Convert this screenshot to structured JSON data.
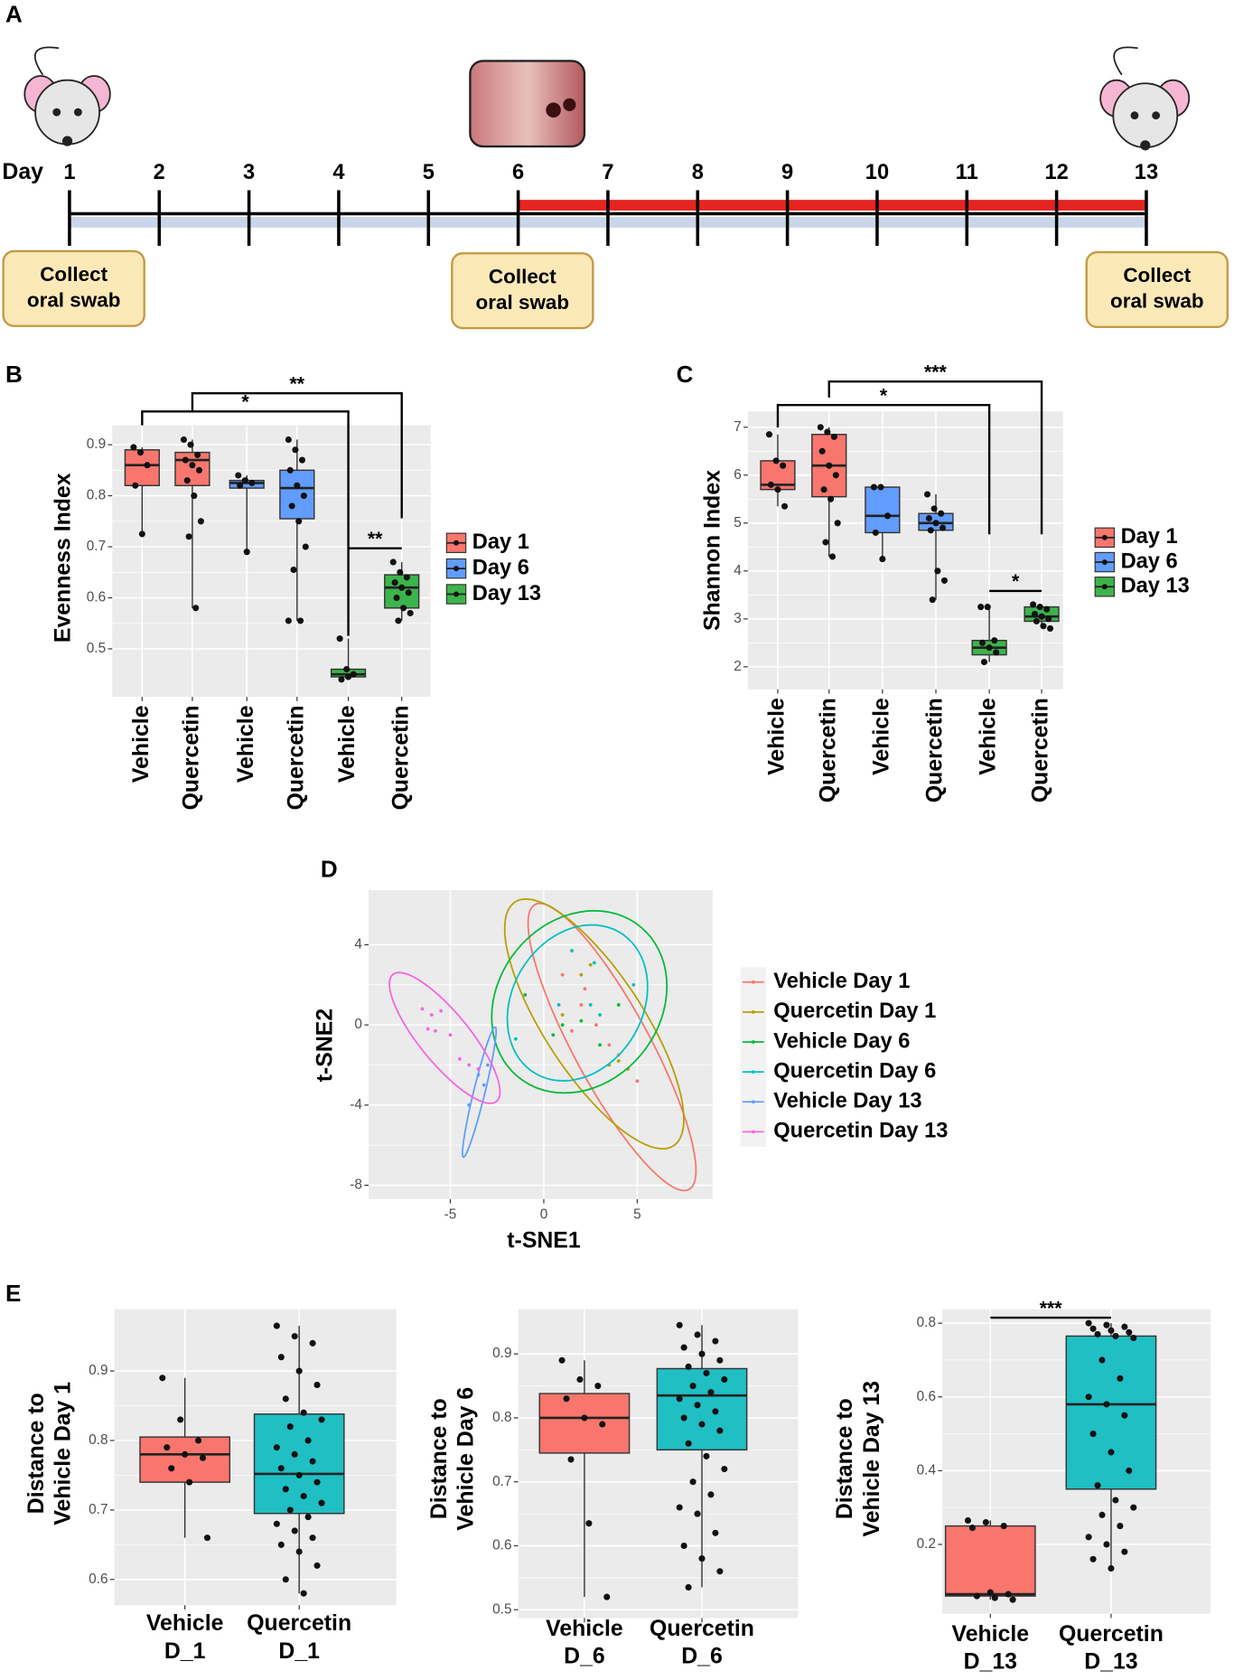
{
  "chart_data": [
    {
      "type": "timeline",
      "panel": "A",
      "label": "Day",
      "days": [
        1,
        2,
        3,
        4,
        5,
        6,
        7,
        8,
        9,
        10,
        11,
        12,
        13
      ],
      "swabs": [
        [
          "Collect",
          "oral swab"
        ],
        [
          "Collect",
          "oral swab"
        ],
        [
          "Collect",
          "oral swab"
        ]
      ]
    },
    {
      "type": "box",
      "panel": "B",
      "ylabel": "Evenness Index",
      "categories": [
        "Vehicle",
        "Quercetin",
        "Vehicle",
        "Quercetin",
        "Vehicle",
        "Quercetin"
      ],
      "ylim": [
        0.406,
        0.938
      ],
      "yticks": [
        0.5,
        0.6,
        0.7,
        0.8,
        0.9
      ],
      "grid": true,
      "legend": [
        {
          "name": "Day 1",
          "color": "#f8766d"
        },
        {
          "name": "Day 6",
          "color": "#619cff"
        },
        {
          "name": "Day 13",
          "color": "#3cb44b"
        }
      ],
      "annotations": [
        "*",
        "**",
        "**"
      ],
      "boxes": [
        {
          "color": "#f8766d",
          "min": 0.725,
          "q1": 0.82,
          "median": 0.86,
          "q3": 0.89,
          "max": 0.895,
          "points": [
            0.895,
            0.885,
            0.86,
            0.82,
            0.725
          ]
        },
        {
          "color": "#f8766d",
          "min": 0.58,
          "q1": 0.82,
          "median": 0.87,
          "q3": 0.885,
          "max": 0.91,
          "points": [
            0.91,
            0.9,
            0.88,
            0.87,
            0.86,
            0.85,
            0.83,
            0.8,
            0.75,
            0.72,
            0.58
          ]
        },
        {
          "color": "#619cff",
          "min": 0.69,
          "q1": 0.815,
          "median": 0.825,
          "q3": 0.83,
          "max": 0.84,
          "points": [
            0.84,
            0.83,
            0.825,
            0.82,
            0.69
          ]
        },
        {
          "color": "#619cff",
          "min": 0.555,
          "q1": 0.755,
          "median": 0.815,
          "q3": 0.85,
          "max": 0.91,
          "points": [
            0.91,
            0.89,
            0.87,
            0.85,
            0.82,
            0.8,
            0.78,
            0.75,
            0.7,
            0.655,
            0.555,
            0.555
          ]
        },
        {
          "color": "#3cb44b",
          "min": 0.44,
          "q1": 0.445,
          "median": 0.45,
          "q3": 0.46,
          "max": 0.52,
          "points": [
            0.52,
            0.46,
            0.45,
            0.44,
            0.445
          ]
        },
        {
          "color": "#3cb44b",
          "min": 0.555,
          "q1": 0.58,
          "median": 0.62,
          "q3": 0.645,
          "max": 0.67,
          "points": [
            0.67,
            0.65,
            0.64,
            0.63,
            0.62,
            0.61,
            0.6,
            0.58,
            0.57,
            0.555
          ]
        }
      ]
    },
    {
      "type": "box",
      "panel": "C",
      "ylabel": "Shannon Index",
      "categories": [
        "Vehicle",
        "Quercetin",
        "Vehicle",
        "Quercetin",
        "Vehicle",
        "Quercetin"
      ],
      "ylim": [
        1.53,
        7.33
      ],
      "yticks": [
        2,
        3,
        4,
        5,
        6,
        7
      ],
      "grid": true,
      "legend": [
        {
          "name": "Day 1",
          "color": "#f8766d"
        },
        {
          "name": "Day 6",
          "color": "#619cff"
        },
        {
          "name": "Day 13",
          "color": "#3cb44b"
        }
      ],
      "annotations": [
        "***",
        "*",
        "*"
      ],
      "boxes": [
        {
          "color": "#f8766d",
          "min": 5.35,
          "q1": 5.7,
          "median": 5.8,
          "q3": 6.3,
          "max": 6.85,
          "points": [
            6.85,
            6.3,
            6.2,
            5.8,
            5.7,
            5.35
          ]
        },
        {
          "color": "#f8766d",
          "min": 4.3,
          "q1": 5.55,
          "median": 6.2,
          "q3": 6.85,
          "max": 7.0,
          "points": [
            7.0,
            6.9,
            6.8,
            6.5,
            6.2,
            6.0,
            5.7,
            5.5,
            5.0,
            4.6,
            4.3
          ]
        },
        {
          "color": "#619cff",
          "min": 4.25,
          "q1": 4.8,
          "median": 5.15,
          "q3": 5.75,
          "max": 5.75,
          "points": [
            5.75,
            5.75,
            5.15,
            4.8,
            4.25
          ]
        },
        {
          "color": "#619cff",
          "min": 3.4,
          "q1": 4.85,
          "median": 5.0,
          "q3": 5.2,
          "max": 5.6,
          "points": [
            5.6,
            5.3,
            5.2,
            5.1,
            5.0,
            4.9,
            4.85,
            4.0,
            3.8,
            3.4
          ]
        },
        {
          "color": "#3cb44b",
          "min": 2.1,
          "q1": 2.25,
          "median": 2.4,
          "q3": 2.55,
          "max": 3.25,
          "points": [
            3.25,
            3.25,
            2.55,
            2.5,
            2.4,
            2.3,
            2.1
          ]
        },
        {
          "color": "#3cb44b",
          "min": 2.8,
          "q1": 2.95,
          "median": 3.05,
          "q3": 3.25,
          "max": 3.3,
          "points": [
            3.3,
            3.25,
            3.2,
            3.1,
            3.05,
            3.0,
            2.95,
            2.85,
            2.8
          ]
        }
      ]
    },
    {
      "type": "scatter",
      "panel": "D",
      "xlabel": "t-SNE1",
      "ylabel": "t-SNE2",
      "xlim": [
        -9.37,
        9.03
      ],
      "ylim": [
        -8.69,
        6.72
      ],
      "xticks": [
        -5,
        0,
        5
      ],
      "yticks": [
        -8,
        -4,
        0,
        4
      ],
      "grid": true,
      "series": [
        {
          "name": "Vehicle Day 1",
          "color": "#f8766d",
          "x": [
            1,
            2,
            3.5,
            2.8,
            4,
            1.5,
            5,
            2.2
          ],
          "y": [
            2.5,
            1,
            -1,
            0,
            -1.5,
            -0.3,
            -2.8,
            1.8
          ],
          "ellipse": {
            "center": [
              3.65,
              -1.1
            ],
            "radii": [
              8.22,
              2.0
            ],
            "angle": -59.7
          }
        },
        {
          "name": "Quercetin Day 1",
          "color": "#b79f00",
          "x": [
            2,
            2.5,
            3.5,
            4.5,
            1,
            4
          ],
          "y": [
            2.5,
            3,
            -2,
            -2.2,
            0.5,
            -1.8
          ],
          "ellipse": {
            "center": [
              2.7,
              0.05
            ],
            "radii": [
              7.42,
              2.6
            ],
            "angle": -54.6
          }
        },
        {
          "name": "Vehicle Day 6",
          "color": "#00ba38",
          "x": [
            -1,
            1,
            2,
            3,
            0.5,
            4
          ],
          "y": [
            1.5,
            0,
            0.2,
            -1,
            -0.5,
            1
          ],
          "ellipse": {
            "center": [
              1.9,
              1.15
            ],
            "radii": [
              5.0,
              4.2
            ],
            "angle": 40
          }
        },
        {
          "name": "Quercetin Day 6",
          "color": "#00bfc4",
          "x": [
            -1.5,
            1.5,
            2.5,
            3,
            0.8,
            4.8,
            2.7
          ],
          "y": [
            -0.7,
            3.7,
            1,
            0.5,
            1,
            2,
            3.1
          ],
          "ellipse": {
            "center": [
              1.8,
              1.1
            ],
            "radii": [
              4.2,
              3.4
            ],
            "angle": 50
          }
        },
        {
          "name": "Vehicle Day 13",
          "color": "#619cff",
          "x": [
            -4,
            -3.5,
            -3,
            -3.2
          ],
          "y": [
            -4,
            -2.5,
            -2,
            -3
          ],
          "ellipse": {
            "center": [
              -3.45,
              -3.35
            ],
            "radii": [
              3.36,
              0.3
            ],
            "angle": 75.3
          }
        },
        {
          "name": "Quercetin Day 13",
          "color": "#f564e3",
          "x": [
            -6.5,
            -6,
            -5.5,
            -5.8,
            -5,
            -4.5,
            -4,
            -3.5,
            -6.2
          ],
          "y": [
            0.8,
            0.5,
            0.7,
            -0.3,
            -0.5,
            -1.7,
            -2,
            -2.2,
            -0.2
          ],
          "ellipse": {
            "center": [
              -5.3,
              -0.65
            ],
            "radii": [
              4.21,
              1.3
            ],
            "angle": -48.4
          }
        }
      ]
    },
    {
      "type": "box",
      "panel": "E",
      "ylabel": [
        "Distance to",
        "Vehicle Day 1"
      ],
      "categories": [
        [
          "Vehicle",
          "D_1"
        ],
        [
          "Quercetin",
          "D_1"
        ]
      ],
      "ylim": [
        0.563,
        0.989
      ],
      "yticks": [
        0.6,
        0.7,
        0.8,
        0.9
      ],
      "grid": true,
      "boxes": [
        {
          "color": "#f8766d",
          "min": 0.66,
          "q1": 0.74,
          "median": 0.78,
          "q3": 0.805,
          "max": 0.89,
          "points": [
            0.89,
            0.83,
            0.8,
            0.79,
            0.78,
            0.775,
            0.76,
            0.74,
            0.66
          ]
        },
        {
          "color": "#1fbfc4",
          "min": 0.58,
          "q1": 0.695,
          "median": 0.752,
          "q3": 0.838,
          "max": 0.965,
          "points": [
            0.965,
            0.95,
            0.94,
            0.92,
            0.9,
            0.88,
            0.86,
            0.84,
            0.83,
            0.82,
            0.8,
            0.79,
            0.78,
            0.77,
            0.76,
            0.75,
            0.74,
            0.73,
            0.72,
            0.71,
            0.7,
            0.69,
            0.68,
            0.67,
            0.66,
            0.65,
            0.64,
            0.62,
            0.6,
            0.58
          ]
        }
      ]
    },
    {
      "type": "box",
      "ylabel": [
        "Distance to",
        "Vehicle Day 6"
      ],
      "categories": [
        [
          "Vehicle",
          "D_6"
        ],
        [
          "Quercetin",
          "D_6"
        ]
      ],
      "ylim": [
        0.487,
        0.97
      ],
      "yticks": [
        0.5,
        0.6,
        0.7,
        0.8,
        0.9
      ],
      "grid": true,
      "boxes": [
        {
          "color": "#f8766d",
          "min": 0.52,
          "q1": 0.745,
          "median": 0.8,
          "q3": 0.838,
          "max": 0.89,
          "points": [
            0.89,
            0.86,
            0.85,
            0.83,
            0.8,
            0.79,
            0.735,
            0.635,
            0.52
          ]
        },
        {
          "color": "#1fbfc4",
          "min": 0.535,
          "q1": 0.75,
          "median": 0.835,
          "q3": 0.877,
          "max": 0.945,
          "points": [
            0.945,
            0.93,
            0.92,
            0.91,
            0.9,
            0.89,
            0.88,
            0.87,
            0.86,
            0.85,
            0.84,
            0.83,
            0.82,
            0.81,
            0.8,
            0.79,
            0.78,
            0.76,
            0.74,
            0.72,
            0.7,
            0.68,
            0.66,
            0.65,
            0.62,
            0.6,
            0.58,
            0.56,
            0.535
          ]
        }
      ]
    },
    {
      "type": "box",
      "ylabel": [
        "Distance to",
        "Vehicle Day 13"
      ],
      "categories": [
        [
          "Vehicle",
          "D_13"
        ],
        [
          "Quercetin",
          "D_13"
        ]
      ],
      "ylim": [
        0.012,
        0.838
      ],
      "yticks": [
        0.2,
        0.4,
        0.6,
        0.8
      ],
      "grid": true,
      "annotations": [
        "***"
      ],
      "boxes": [
        {
          "color": "#f8766d",
          "min": 0.05,
          "q1": 0.06,
          "median": 0.065,
          "q3": 0.25,
          "max": 0.265,
          "points": [
            0.265,
            0.26,
            0.25,
            0.245,
            0.07,
            0.065,
            0.06,
            0.055,
            0.05
          ]
        },
        {
          "color": "#1fbfc4",
          "min": 0.135,
          "q1": 0.35,
          "median": 0.58,
          "q3": 0.765,
          "max": 0.8,
          "points": [
            0.8,
            0.795,
            0.79,
            0.785,
            0.78,
            0.775,
            0.77,
            0.765,
            0.76,
            0.7,
            0.65,
            0.6,
            0.58,
            0.55,
            0.5,
            0.45,
            0.4,
            0.36,
            0.32,
            0.3,
            0.28,
            0.25,
            0.22,
            0.2,
            0.18,
            0.16,
            0.135
          ]
        }
      ]
    }
  ]
}
